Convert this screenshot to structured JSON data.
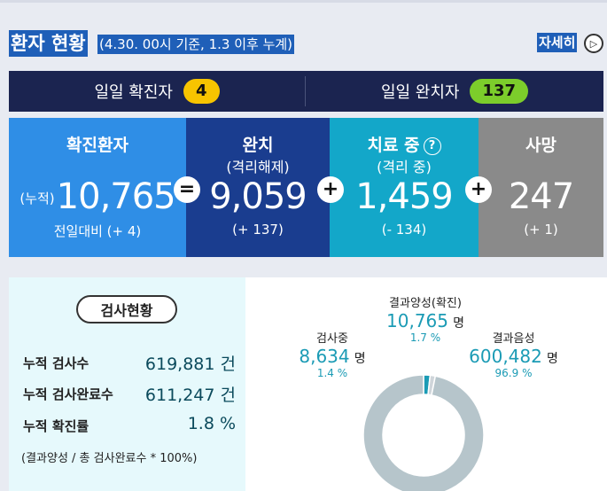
{
  "header": {
    "title": "환자 현황",
    "subtitle": "(4.30. 00시 기준, 1.3 이후 누계)",
    "more_label": "자세히",
    "more_icon": "chevron-right-icon"
  },
  "daily": {
    "confirmed_label": "일일 확진자",
    "confirmed_value": "4",
    "recovered_label": "일일 완치자",
    "recovered_value": "137"
  },
  "cards": {
    "confirmed": {
      "label": "확진환자",
      "prefix": "(누적)",
      "value": "10,765",
      "delta": "전일대비 (+ 4)"
    },
    "recovered": {
      "label": "완치",
      "sublabel": "(격리해제)",
      "value": "9,059",
      "delta": "(+ 137)"
    },
    "treatment": {
      "label": "치료 중",
      "sublabel": "(격리 중)",
      "value": "1,459",
      "delta": "(- 134)"
    },
    "deaths": {
      "label": "사망",
      "value": "247",
      "delta": "(+ 1)"
    },
    "op_equals": "=",
    "op_plus": "+",
    "help_glyph": "?"
  },
  "tests": {
    "badge": "검사현황",
    "rows": [
      {
        "label": "누적 검사수",
        "value": "619,881 건"
      },
      {
        "label": "누적 검사완료수",
        "value": "611,247 건"
      },
      {
        "label": "누적 확진률",
        "value": "1.8 %"
      }
    ],
    "note": "(결과양성 / 총 검사완료수 * 100%)"
  },
  "chart_data": {
    "type": "pie",
    "unit": "명",
    "categories": [
      "결과양성(확진)",
      "검사중",
      "결과음성"
    ],
    "values": [
      10765,
      8634,
      600482
    ],
    "display_values": [
      "10,765",
      "8,634",
      "600,482"
    ],
    "percents": [
      "1.7 %",
      "1.4 %",
      "96.9 %"
    ],
    "colors": [
      "#1b9bb5",
      "#cfd5da",
      "#b6c5cb"
    ]
  }
}
